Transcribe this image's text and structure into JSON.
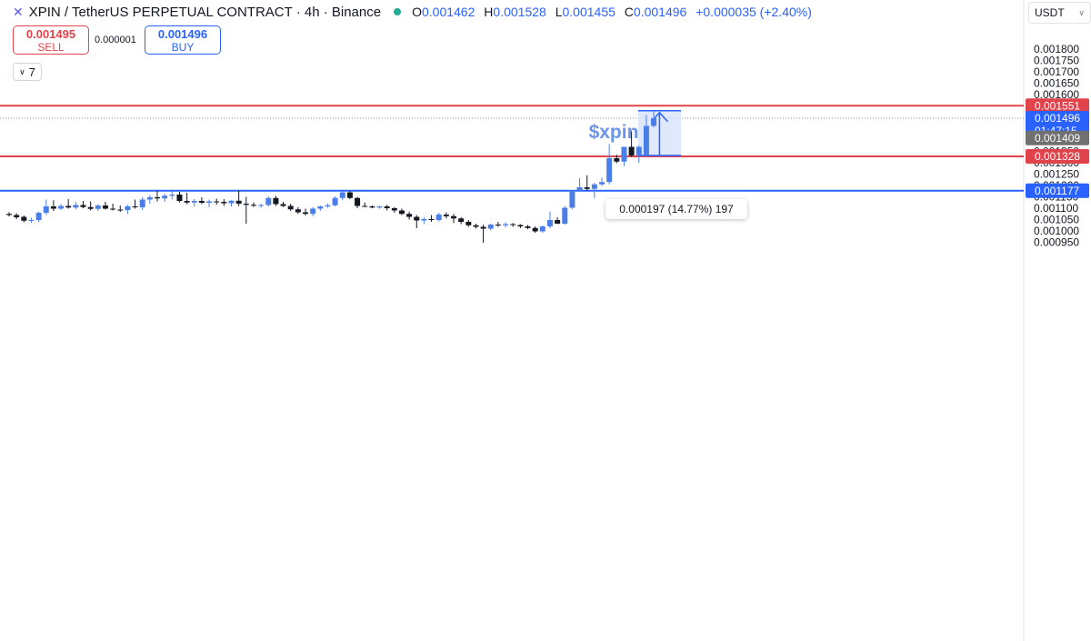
{
  "header": {
    "symbol_title": "XPIN / TetherUS PERPETUAL CONTRACT · 4h · Binance",
    "logo_icon": "exchange-logo-icon",
    "market_status_color": "#22ab94",
    "ohlc": {
      "o_label": "O",
      "o": "0.001462",
      "h_label": "H",
      "h": "0.001528",
      "l_label": "L",
      "l": "0.001455",
      "c_label": "C",
      "c": "0.001496",
      "change": "+0.000035 (+2.40%)"
    }
  },
  "trade": {
    "sell_price": "0.001495",
    "sell_label": "SELL",
    "spread": "0.000001",
    "buy_price": "0.001496",
    "buy_label": "BUY"
  },
  "indicators_toggle": {
    "count": "7",
    "icon": "chevron-down-icon"
  },
  "currency_select": {
    "value": "USDT",
    "icon": "chevron-down-icon"
  },
  "colors": {
    "up": "#4c7ee8",
    "down": "#131722",
    "resistance": "#e0434b",
    "support": "#2962ff",
    "last_price_badge": "#2962ff",
    "marker_badge": "#707070",
    "measure_fill": "#d6e2fb",
    "measure_stroke": "#2962ff"
  },
  "chart_data": {
    "type": "candlestick",
    "interval": "4h",
    "y_range": [
      0.000935,
      0.001835
    ],
    "y_ticks": [
      "0.001800",
      "0.001750",
      "0.001700",
      "0.001650",
      "0.001600",
      "0.001450",
      "0.001350",
      "0.001300",
      "0.001250",
      "0.001200",
      "0.001150",
      "0.001100",
      "0.001050",
      "0.001000",
      "0.000950"
    ],
    "annotation_text": "$xpin",
    "horizontal_lines": [
      {
        "price": 0.001551,
        "label": "0.001551",
        "color": "#e0434b"
      },
      {
        "price": 0.001328,
        "label": "0.001328",
        "color": "#e0434b"
      },
      {
        "price": 0.001177,
        "label": "0.001177",
        "color": "#2962ff"
      }
    ],
    "last_price": {
      "price": 0.001496,
      "label": "0.001496",
      "countdown": "01:47:15"
    },
    "marker_price": {
      "price": 0.001409,
      "label": "0.001409"
    },
    "measure": {
      "from_price": 0.001332,
      "to_price": 0.001529,
      "label": "0.000197 (14.77%) 197"
    },
    "candles": [
      {
        "o": 0.001075,
        "h": 0.001082,
        "l": 0.001064,
        "c": 0.00107
      },
      {
        "o": 0.00107,
        "h": 0.001078,
        "l": 0.001052,
        "c": 0.00106
      },
      {
        "o": 0.001062,
        "h": 0.001068,
        "l": 0.001038,
        "c": 0.001045
      },
      {
        "o": 0.001045,
        "h": 0.001058,
        "l": 0.001036,
        "c": 0.001048
      },
      {
        "o": 0.001048,
        "h": 0.001085,
        "l": 0.00104,
        "c": 0.00108
      },
      {
        "o": 0.00108,
        "h": 0.001138,
        "l": 0.00107,
        "c": 0.001108
      },
      {
        "o": 0.001108,
        "h": 0.001135,
        "l": 0.001088,
        "c": 0.001098
      },
      {
        "o": 0.001098,
        "h": 0.001118,
        "l": 0.001092,
        "c": 0.00111
      },
      {
        "o": 0.00111,
        "h": 0.00114,
        "l": 0.001098,
        "c": 0.001103
      },
      {
        "o": 0.001103,
        "h": 0.001128,
        "l": 0.001095,
        "c": 0.001114
      },
      {
        "o": 0.001114,
        "h": 0.001132,
        "l": 0.0011,
        "c": 0.001105
      },
      {
        "o": 0.001105,
        "h": 0.00113,
        "l": 0.00109,
        "c": 0.001097
      },
      {
        "o": 0.001097,
        "h": 0.001118,
        "l": 0.001088,
        "c": 0.001112
      },
      {
        "o": 0.001112,
        "h": 0.001128,
        "l": 0.001094,
        "c": 0.001098
      },
      {
        "o": 0.001098,
        "h": 0.00112,
        "l": 0.00109,
        "c": 0.001094
      },
      {
        "o": 0.001094,
        "h": 0.001112,
        "l": 0.001084,
        "c": 0.001092
      },
      {
        "o": 0.001092,
        "h": 0.001115,
        "l": 0.001075,
        "c": 0.001108
      },
      {
        "o": 0.001108,
        "h": 0.001138,
        "l": 0.001098,
        "c": 0.001104
      },
      {
        "o": 0.001104,
        "h": 0.00115,
        "l": 0.001092,
        "c": 0.001138
      },
      {
        "o": 0.001138,
        "h": 0.001158,
        "l": 0.00112,
        "c": 0.001148
      },
      {
        "o": 0.001148,
        "h": 0.001178,
        "l": 0.00113,
        "c": 0.001143
      },
      {
        "o": 0.001143,
        "h": 0.001165,
        "l": 0.001128,
        "c": 0.001155
      },
      {
        "o": 0.001155,
        "h": 0.001175,
        "l": 0.001138,
        "c": 0.00116
      },
      {
        "o": 0.00116,
        "h": 0.001172,
        "l": 0.001125,
        "c": 0.001132
      },
      {
        "o": 0.001132,
        "h": 0.001168,
        "l": 0.001118,
        "c": 0.001125
      },
      {
        "o": 0.001125,
        "h": 0.00114,
        "l": 0.001108,
        "c": 0.001132
      },
      {
        "o": 0.001132,
        "h": 0.001148,
        "l": 0.001118,
        "c": 0.001124
      },
      {
        "o": 0.001124,
        "h": 0.001138,
        "l": 0.001105,
        "c": 0.00113
      },
      {
        "o": 0.00113,
        "h": 0.001142,
        "l": 0.001115,
        "c": 0.001128
      },
      {
        "o": 0.001128,
        "h": 0.00114,
        "l": 0.00111,
        "c": 0.001122
      },
      {
        "o": 0.001122,
        "h": 0.001135,
        "l": 0.001108,
        "c": 0.001133
      },
      {
        "o": 0.001133,
        "h": 0.001178,
        "l": 0.00111,
        "c": 0.00112
      },
      {
        "o": 0.00112,
        "h": 0.00115,
        "l": 0.001032,
        "c": 0.001115
      },
      {
        "o": 0.001115,
        "h": 0.001125,
        "l": 0.001105,
        "c": 0.001112
      },
      {
        "o": 0.001112,
        "h": 0.00112,
        "l": 0.001102,
        "c": 0.001114
      },
      {
        "o": 0.001114,
        "h": 0.001152,
        "l": 0.001108,
        "c": 0.001145
      },
      {
        "o": 0.001145,
        "h": 0.001155,
        "l": 0.00111,
        "c": 0.001118
      },
      {
        "o": 0.001118,
        "h": 0.001128,
        "l": 0.001105,
        "c": 0.00111
      },
      {
        "o": 0.00111,
        "h": 0.00112,
        "l": 0.001088,
        "c": 0.001095
      },
      {
        "o": 0.001095,
        "h": 0.001105,
        "l": 0.001075,
        "c": 0.001082
      },
      {
        "o": 0.001082,
        "h": 0.001098,
        "l": 0.001068,
        "c": 0.001075
      },
      {
        "o": 0.001075,
        "h": 0.001105,
        "l": 0.001065,
        "c": 0.001098
      },
      {
        "o": 0.001098,
        "h": 0.001112,
        "l": 0.001088,
        "c": 0.001108
      },
      {
        "o": 0.001108,
        "h": 0.00112,
        "l": 0.001102,
        "c": 0.001113
      },
      {
        "o": 0.001113,
        "h": 0.001152,
        "l": 0.001108,
        "c": 0.001145
      },
      {
        "o": 0.001145,
        "h": 0.001175,
        "l": 0.001135,
        "c": 0.00117
      },
      {
        "o": 0.00117,
        "h": 0.001175,
        "l": 0.00114,
        "c": 0.001145
      },
      {
        "o": 0.001145,
        "h": 0.00115,
        "l": 0.0011,
        "c": 0.00111
      },
      {
        "o": 0.00111,
        "h": 0.001125,
        "l": 0.001105,
        "c": 0.001108
      },
      {
        "o": 0.001108,
        "h": 0.001112,
        "l": 0.0011,
        "c": 0.001103
      },
      {
        "o": 0.001103,
        "h": 0.00111,
        "l": 0.001098,
        "c": 0.001108
      },
      {
        "o": 0.001108,
        "h": 0.001115,
        "l": 0.00109,
        "c": 0.0011
      },
      {
        "o": 0.0011,
        "h": 0.001105,
        "l": 0.00108,
        "c": 0.00109
      },
      {
        "o": 0.00109,
        "h": 0.001098,
        "l": 0.00107,
        "c": 0.001075
      },
      {
        "o": 0.001075,
        "h": 0.001085,
        "l": 0.00105,
        "c": 0.001062
      },
      {
        "o": 0.001062,
        "h": 0.00107,
        "l": 0.001012,
        "c": 0.001046
      },
      {
        "o": 0.001046,
        "h": 0.00106,
        "l": 0.00103,
        "c": 0.001052
      },
      {
        "o": 0.001052,
        "h": 0.00107,
        "l": 0.00104,
        "c": 0.001048
      },
      {
        "o": 0.001048,
        "h": 0.00108,
        "l": 0.001042,
        "c": 0.001072
      },
      {
        "o": 0.001072,
        "h": 0.001082,
        "l": 0.001055,
        "c": 0.001065
      },
      {
        "o": 0.001065,
        "h": 0.001075,
        "l": 0.001035,
        "c": 0.001055
      },
      {
        "o": 0.001055,
        "h": 0.00106,
        "l": 0.00103,
        "c": 0.00104
      },
      {
        "o": 0.00104,
        "h": 0.001048,
        "l": 0.001018,
        "c": 0.001025
      },
      {
        "o": 0.001025,
        "h": 0.001032,
        "l": 0.00101,
        "c": 0.001018
      },
      {
        "o": 0.001018,
        "h": 0.001028,
        "l": 0.000948,
        "c": 0.00101
      },
      {
        "o": 0.00101,
        "h": 0.001032,
        "l": 0.001002,
        "c": 0.001028
      },
      {
        "o": 0.001028,
        "h": 0.00104,
        "l": 0.001018,
        "c": 0.001025
      },
      {
        "o": 0.001025,
        "h": 0.001038,
        "l": 0.001015,
        "c": 0.00103
      },
      {
        "o": 0.00103,
        "h": 0.001035,
        "l": 0.001018,
        "c": 0.001026
      },
      {
        "o": 0.001026,
        "h": 0.00103,
        "l": 0.001012,
        "c": 0.00102
      },
      {
        "o": 0.00102,
        "h": 0.001026,
        "l": 0.001008,
        "c": 0.001013
      },
      {
        "o": 0.001013,
        "h": 0.00102,
        "l": 0.000992,
        "c": 0.000998
      },
      {
        "o": 0.000998,
        "h": 0.001025,
        "l": 0.000992,
        "c": 0.00102
      },
      {
        "o": 0.00102,
        "h": 0.001085,
        "l": 0.001012,
        "c": 0.001048
      },
      {
        "o": 0.001048,
        "h": 0.00106,
        "l": 0.00103,
        "c": 0.001032
      },
      {
        "o": 0.001032,
        "h": 0.00111,
        "l": 0.001028,
        "c": 0.001102
      },
      {
        "o": 0.001102,
        "h": 0.001178,
        "l": 0.001095,
        "c": 0.001178
      },
      {
        "o": 0.001178,
        "h": 0.001232,
        "l": 0.001175,
        "c": 0.001192
      },
      {
        "o": 0.001192,
        "h": 0.001245,
        "l": 0.001178,
        "c": 0.001185
      },
      {
        "o": 0.001185,
        "h": 0.001212,
        "l": 0.001145,
        "c": 0.001205
      },
      {
        "o": 0.001205,
        "h": 0.001235,
        "l": 0.001198,
        "c": 0.001215
      },
      {
        "o": 0.001215,
        "h": 0.001382,
        "l": 0.001205,
        "c": 0.00132
      },
      {
        "o": 0.00132,
        "h": 0.001335,
        "l": 0.001298,
        "c": 0.001305
      },
      {
        "o": 0.001305,
        "h": 0.00137,
        "l": 0.001285,
        "c": 0.00137
      },
      {
        "o": 0.00137,
        "h": 0.001438,
        "l": 0.001326,
        "c": 0.001332
      },
      {
        "o": 0.001332,
        "h": 0.001375,
        "l": 0.0013,
        "c": 0.00137
      },
      {
        "o": 0.001335,
        "h": 0.00151,
        "l": 0.001332,
        "c": 0.001462
      },
      {
        "o": 0.001462,
        "h": 0.001528,
        "l": 0.001455,
        "c": 0.001496
      }
    ]
  }
}
